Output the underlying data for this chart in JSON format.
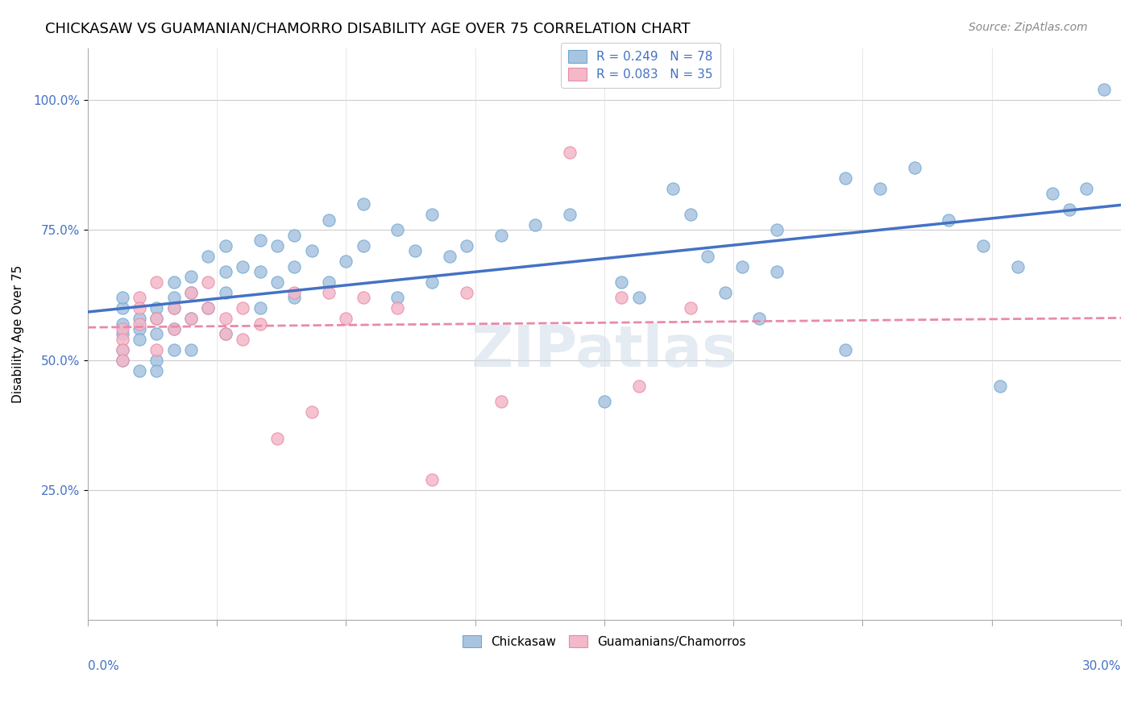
{
  "title": "CHICKASAW VS GUAMANIAN/CHAMORRO DISABILITY AGE OVER 75 CORRELATION CHART",
  "source": "Source: ZipAtlas.com",
  "ylabel": "Disability Age Over 75",
  "chickasaw_color": "#a8c4e0",
  "guamanian_color": "#f4b8c8",
  "chickasaw_edge": "#6fa8d4",
  "guamanian_edge": "#e88aaa",
  "trend_chickasaw_color": "#4472c4",
  "trend_guamanian_color": "#e88aaa",
  "watermark": "ZIPatlas",
  "watermark_color": "#d0dce8",
  "x_min": 0.0,
  "x_max": 0.3,
  "y_min": 0.0,
  "y_max": 1.1,
  "chickasaw_x": [
    0.01,
    0.01,
    0.01,
    0.01,
    0.01,
    0.01,
    0.015,
    0.015,
    0.015,
    0.015,
    0.02,
    0.02,
    0.02,
    0.02,
    0.02,
    0.025,
    0.025,
    0.025,
    0.025,
    0.025,
    0.03,
    0.03,
    0.03,
    0.03,
    0.035,
    0.035,
    0.04,
    0.04,
    0.04,
    0.04,
    0.045,
    0.05,
    0.05,
    0.05,
    0.055,
    0.055,
    0.06,
    0.06,
    0.06,
    0.065,
    0.07,
    0.07,
    0.075,
    0.08,
    0.08,
    0.09,
    0.09,
    0.095,
    0.1,
    0.1,
    0.105,
    0.11,
    0.12,
    0.13,
    0.14,
    0.15,
    0.155,
    0.16,
    0.17,
    0.175,
    0.18,
    0.185,
    0.19,
    0.195,
    0.2,
    0.2,
    0.22,
    0.22,
    0.23,
    0.24,
    0.25,
    0.26,
    0.265,
    0.27,
    0.28,
    0.285,
    0.29,
    0.295
  ],
  "chickasaw_y": [
    0.57,
    0.6,
    0.62,
    0.55,
    0.52,
    0.5,
    0.58,
    0.56,
    0.54,
    0.48,
    0.6,
    0.58,
    0.55,
    0.5,
    0.48,
    0.65,
    0.62,
    0.6,
    0.56,
    0.52,
    0.66,
    0.63,
    0.58,
    0.52,
    0.7,
    0.6,
    0.72,
    0.67,
    0.63,
    0.55,
    0.68,
    0.73,
    0.67,
    0.6,
    0.72,
    0.65,
    0.74,
    0.68,
    0.62,
    0.71,
    0.77,
    0.65,
    0.69,
    0.8,
    0.72,
    0.75,
    0.62,
    0.71,
    0.78,
    0.65,
    0.7,
    0.72,
    0.74,
    0.76,
    0.78,
    0.42,
    0.65,
    0.62,
    0.83,
    0.78,
    0.7,
    0.63,
    0.68,
    0.58,
    0.75,
    0.67,
    0.85,
    0.52,
    0.83,
    0.87,
    0.77,
    0.72,
    0.45,
    0.68,
    0.82,
    0.79,
    0.83,
    1.02
  ],
  "guamanian_x": [
    0.01,
    0.01,
    0.01,
    0.01,
    0.015,
    0.015,
    0.015,
    0.02,
    0.02,
    0.02,
    0.025,
    0.025,
    0.03,
    0.03,
    0.035,
    0.035,
    0.04,
    0.04,
    0.045,
    0.045,
    0.05,
    0.055,
    0.06,
    0.065,
    0.07,
    0.075,
    0.08,
    0.09,
    0.1,
    0.11,
    0.12,
    0.14,
    0.155,
    0.16,
    0.175
  ],
  "guamanian_y": [
    0.56,
    0.54,
    0.52,
    0.5,
    0.62,
    0.6,
    0.57,
    0.65,
    0.58,
    0.52,
    0.6,
    0.56,
    0.63,
    0.58,
    0.65,
    0.6,
    0.58,
    0.55,
    0.6,
    0.54,
    0.57,
    0.35,
    0.63,
    0.4,
    0.63,
    0.58,
    0.62,
    0.6,
    0.27,
    0.63,
    0.42,
    0.9,
    0.62,
    0.45,
    0.6
  ]
}
